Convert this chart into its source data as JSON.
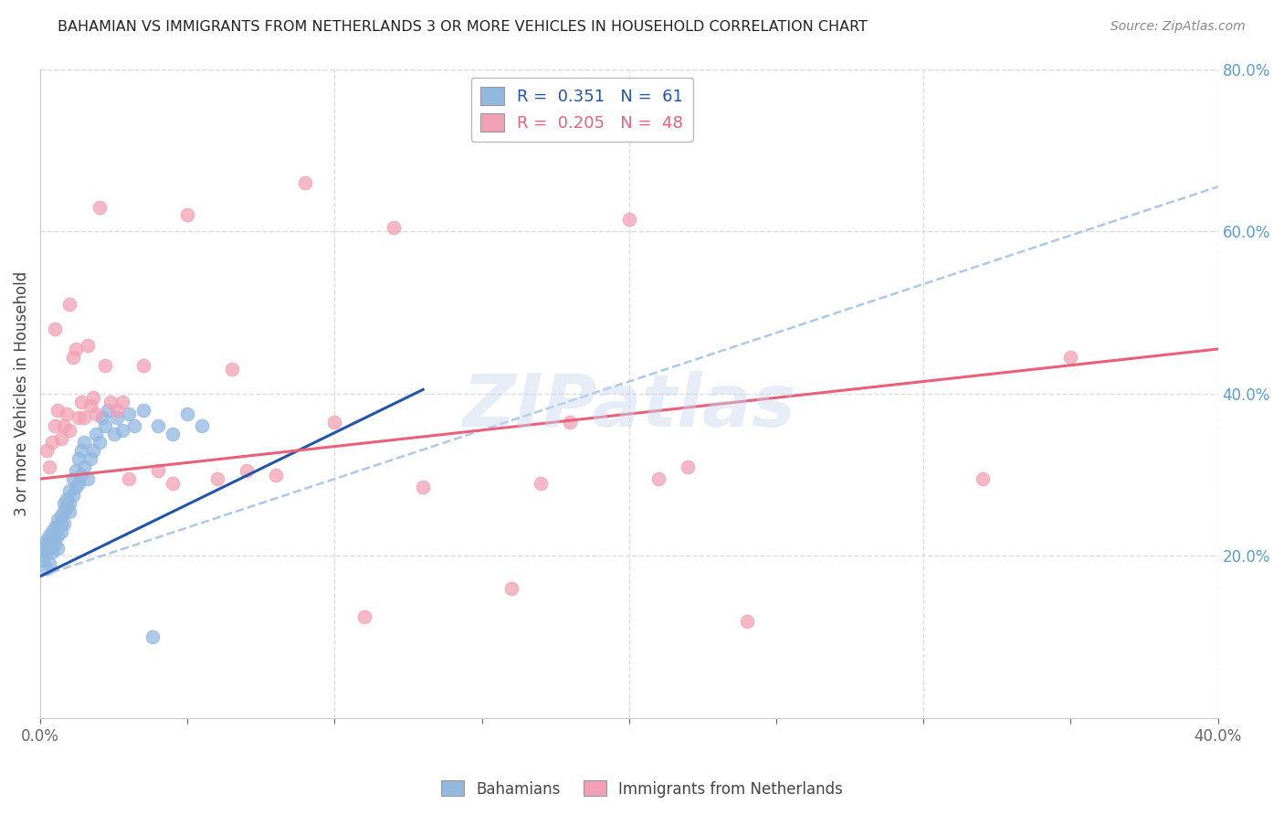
{
  "title": "BAHAMIAN VS IMMIGRANTS FROM NETHERLANDS 3 OR MORE VEHICLES IN HOUSEHOLD CORRELATION CHART",
  "source": "Source: ZipAtlas.com",
  "ylabel": "3 or more Vehicles in Household",
  "xlim": [
    0.0,
    0.4
  ],
  "ylim": [
    0.0,
    0.8
  ],
  "xticks": [
    0.0,
    0.05,
    0.1,
    0.15,
    0.2,
    0.25,
    0.3,
    0.35,
    0.4
  ],
  "xticklabels": [
    "0.0%",
    "",
    "",
    "",
    "",
    "",
    "",
    "",
    "40.0%"
  ],
  "yticks_right": [
    0.2,
    0.4,
    0.6,
    0.8
  ],
  "yticklabels_right": [
    "20.0%",
    "40.0%",
    "60.0%",
    "80.0%"
  ],
  "grid_color": "#dddddd",
  "background_color": "#ffffff",
  "bahamian_color": "#92b8e0",
  "netherlands_color": "#f2a0b5",
  "bahamian_R": 0.351,
  "bahamian_N": 61,
  "netherlands_R": 0.205,
  "netherlands_N": 48,
  "bahamian_line_color": "#2255aa",
  "netherlands_line_color": "#e8607a",
  "dashed_line_color": "#aec8e8",
  "watermark": "ZIPatlas",
  "blue_line_x": [
    0.0,
    0.13
  ],
  "blue_line_y": [
    0.175,
    0.405
  ],
  "pink_line_x": [
    0.0,
    0.4
  ],
  "pink_line_y": [
    0.295,
    0.455
  ],
  "dashed_line_x": [
    0.0,
    0.4
  ],
  "dashed_line_y": [
    0.175,
    0.655
  ],
  "bahamians_x": [
    0.001,
    0.001,
    0.001,
    0.002,
    0.002,
    0.002,
    0.002,
    0.003,
    0.003,
    0.003,
    0.003,
    0.004,
    0.004,
    0.004,
    0.005,
    0.005,
    0.005,
    0.006,
    0.006,
    0.006,
    0.006,
    0.007,
    0.007,
    0.007,
    0.008,
    0.008,
    0.008,
    0.009,
    0.009,
    0.01,
    0.01,
    0.01,
    0.011,
    0.011,
    0.012,
    0.012,
    0.013,
    0.013,
    0.014,
    0.014,
    0.015,
    0.015,
    0.016,
    0.017,
    0.018,
    0.019,
    0.02,
    0.021,
    0.022,
    0.023,
    0.025,
    0.026,
    0.028,
    0.03,
    0.032,
    0.035,
    0.038,
    0.04,
    0.045,
    0.05,
    0.055
  ],
  "bahamians_y": [
    0.195,
    0.21,
    0.2,
    0.185,
    0.215,
    0.205,
    0.22,
    0.19,
    0.215,
    0.21,
    0.225,
    0.205,
    0.23,
    0.22,
    0.215,
    0.235,
    0.225,
    0.21,
    0.235,
    0.245,
    0.225,
    0.23,
    0.25,
    0.24,
    0.255,
    0.265,
    0.24,
    0.26,
    0.27,
    0.255,
    0.28,
    0.265,
    0.275,
    0.295,
    0.285,
    0.305,
    0.29,
    0.32,
    0.3,
    0.33,
    0.31,
    0.34,
    0.295,
    0.32,
    0.33,
    0.35,
    0.34,
    0.37,
    0.36,
    0.38,
    0.35,
    0.37,
    0.355,
    0.375,
    0.36,
    0.38,
    0.1,
    0.36,
    0.35,
    0.375,
    0.36
  ],
  "netherlands_x": [
    0.002,
    0.003,
    0.004,
    0.005,
    0.005,
    0.006,
    0.007,
    0.008,
    0.009,
    0.01,
    0.01,
    0.011,
    0.012,
    0.013,
    0.014,
    0.015,
    0.016,
    0.017,
    0.018,
    0.019,
    0.02,
    0.022,
    0.024,
    0.026,
    0.028,
    0.03,
    0.035,
    0.04,
    0.045,
    0.05,
    0.06,
    0.065,
    0.07,
    0.08,
    0.09,
    0.1,
    0.11,
    0.12,
    0.13,
    0.16,
    0.17,
    0.18,
    0.2,
    0.21,
    0.22,
    0.24,
    0.32,
    0.35
  ],
  "netherlands_y": [
    0.33,
    0.31,
    0.34,
    0.36,
    0.48,
    0.38,
    0.345,
    0.36,
    0.375,
    0.355,
    0.51,
    0.445,
    0.455,
    0.37,
    0.39,
    0.37,
    0.46,
    0.385,
    0.395,
    0.375,
    0.63,
    0.435,
    0.39,
    0.38,
    0.39,
    0.295,
    0.435,
    0.305,
    0.29,
    0.62,
    0.295,
    0.43,
    0.305,
    0.3,
    0.66,
    0.365,
    0.125,
    0.605,
    0.285,
    0.16,
    0.29,
    0.365,
    0.615,
    0.295,
    0.31,
    0.12,
    0.295,
    0.445
  ]
}
